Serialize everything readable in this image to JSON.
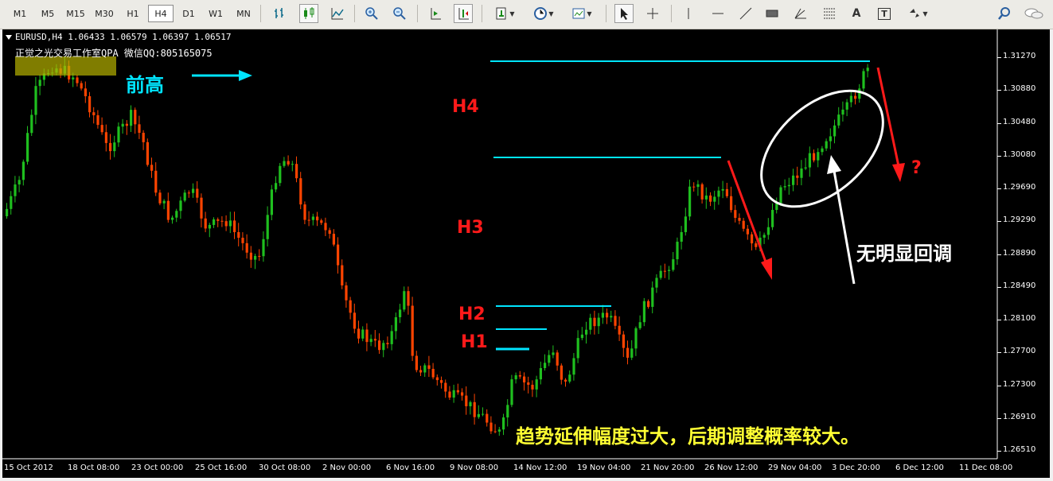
{
  "toolbar": {
    "timeframes": [
      "M1",
      "M5",
      "M15",
      "M30",
      "H1",
      "H4",
      "D1",
      "W1",
      "MN"
    ],
    "active_timeframe": "H4",
    "tools": [
      "bar-chart-icon",
      "candlestick-icon",
      "line-chart-icon",
      "zoom-in-icon",
      "zoom-out-icon",
      "autoscroll-icon",
      "chart-shift-icon",
      "indicators-icon",
      "periods-icon",
      "templates-icon",
      "cursor-icon",
      "crosshair-icon",
      "vertical-line-icon",
      "horizontal-line-icon",
      "trendline-icon",
      "rectangle-icon",
      "gann-icon",
      "fibonacci-icon",
      "text-icon",
      "text-label-icon",
      "arrows-icon",
      "search-icon",
      "chat-icon"
    ],
    "text_tool_label": "A",
    "text_label_tool_label": "T"
  },
  "chart": {
    "info_line": "EURUSD,H4  1.06433 1.06579 1.06397 1.06517",
    "studio_text": "正觉之光交易工作室QPA 微信QQ:805165075",
    "price_axis": [
      "1.31270",
      "1.30880",
      "1.30480",
      "1.30080",
      "1.29690",
      "1.29290",
      "1.28890",
      "1.28490",
      "1.28100",
      "1.27700",
      "1.27300",
      "1.26910",
      "1.26510"
    ],
    "time_axis": [
      "15 Oct 2012",
      "18 Oct 08:00",
      "23 Oct 00:00",
      "25 Oct 16:00",
      "30 Oct 08:00",
      "2 Nov 00:00",
      "6 Nov 16:00",
      "9 Nov 08:00",
      "14 Nov 12:00",
      "19 Nov 04:00",
      "21 Nov 20:00",
      "26 Nov 12:00",
      "29 Nov 04:00",
      "3 Dec 20:00",
      "6 Dec 12:00",
      "11 Dec 08:00"
    ],
    "annotations": {
      "previous_high": "前高",
      "h4": "H4",
      "h3": "H3",
      "h2": "H2",
      "h1": "H1",
      "no_pullback": "无明显回调",
      "question": "?",
      "bottom_note": "趋势延伸幅度过大，后期调整概率较大。"
    },
    "colors": {
      "bull": "#1fbf1f",
      "bear": "#ff4400",
      "levels": "#00e5ff",
      "arrow_red": "#ff1a1a"
    }
  }
}
